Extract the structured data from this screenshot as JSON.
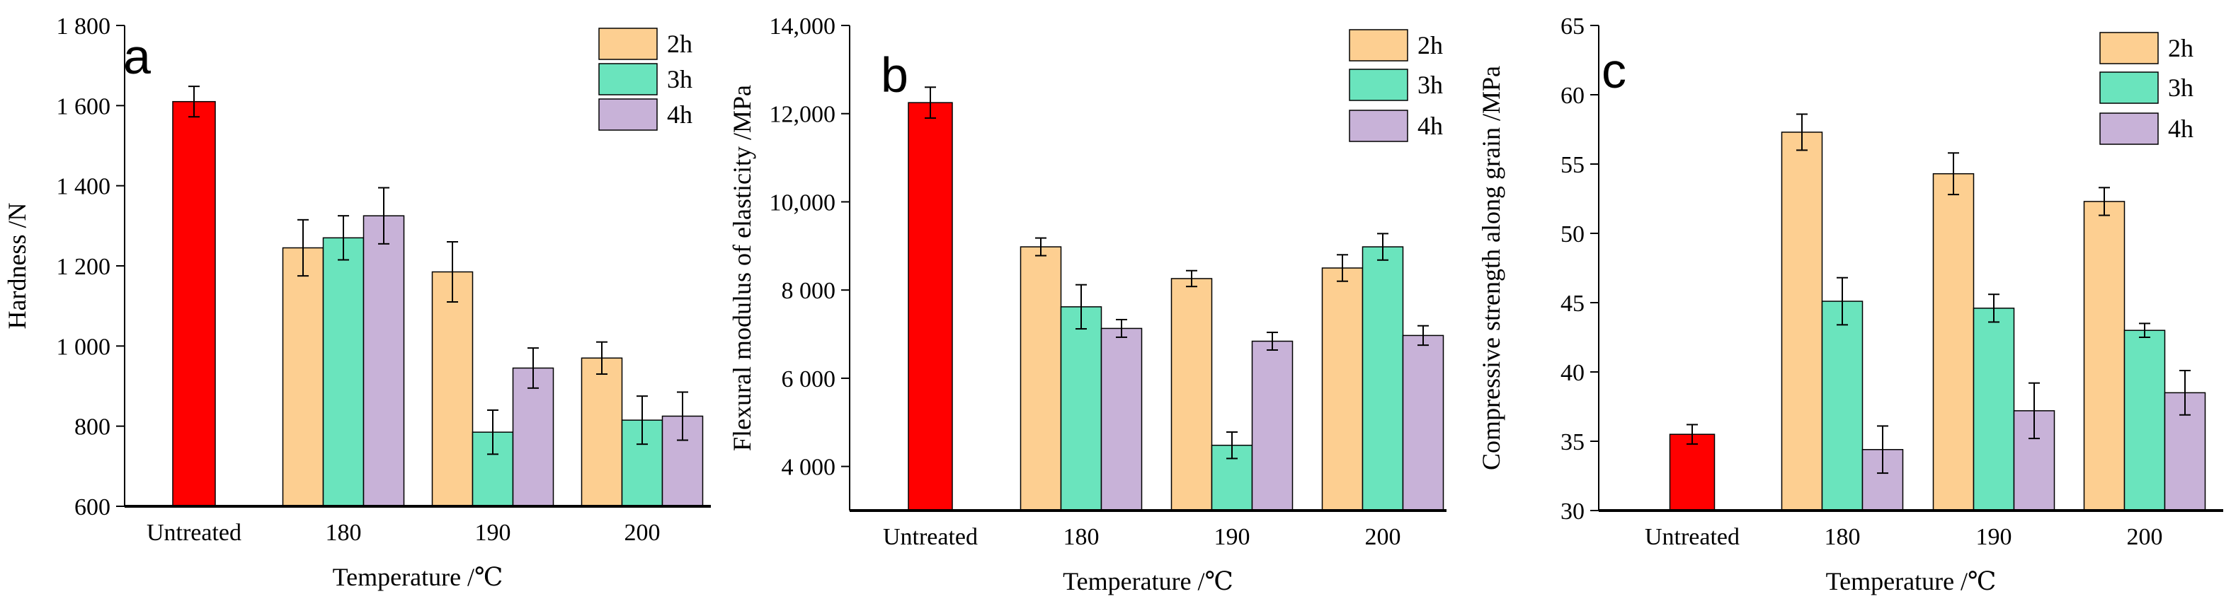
{
  "chart_data": [
    {
      "type": "bar",
      "panel_label": "a",
      "categories": [
        "Untreated",
        "180",
        "190",
        "200"
      ],
      "series": [
        {
          "name": "Untreated",
          "color": "#ff0000",
          "values": [
            1610,
            null,
            null,
            null
          ],
          "errors": [
            38,
            null,
            null,
            null
          ]
        },
        {
          "name": "2h",
          "color": "#fdcf91",
          "values": [
            null,
            1245,
            1185,
            970
          ],
          "errors": [
            null,
            70,
            75,
            40
          ]
        },
        {
          "name": "3h",
          "color": "#6ae4bd",
          "values": [
            null,
            1270,
            785,
            815
          ],
          "errors": [
            null,
            55,
            55,
            60
          ]
        },
        {
          "name": "4h",
          "color": "#c8b2d8",
          "values": [
            null,
            1325,
            945,
            825
          ],
          "errors": [
            null,
            70,
            50,
            60
          ]
        }
      ],
      "legend": [
        "2h",
        "3h",
        "4h"
      ],
      "ylim": [
        600,
        1800
      ],
      "yticks": [
        600,
        800,
        1000,
        1200,
        1400,
        1600,
        1800
      ],
      "ytick_labels": [
        "600",
        "800",
        "1 000",
        "1 200",
        "1 400",
        "1 600",
        "1 800"
      ],
      "xlabel": "Temperature /℃",
      "ylabel": "Hardness /N"
    },
    {
      "type": "bar",
      "panel_label": "b",
      "categories": [
        "Untreated",
        "180",
        "190",
        "200"
      ],
      "series": [
        {
          "name": "Untreated",
          "color": "#ff0000",
          "values": [
            12250,
            null,
            null,
            null
          ],
          "errors": [
            350,
            null,
            null,
            null
          ]
        },
        {
          "name": "2h",
          "color": "#fdcf91",
          "values": [
            null,
            8980,
            8260,
            8500
          ],
          "errors": [
            null,
            200,
            180,
            300
          ]
        },
        {
          "name": "3h",
          "color": "#6ae4bd",
          "values": [
            null,
            7620,
            4480,
            8980
          ],
          "errors": [
            null,
            500,
            300,
            300
          ]
        },
        {
          "name": "4h",
          "color": "#c8b2d8",
          "values": [
            null,
            7130,
            6840,
            6970
          ],
          "errors": [
            null,
            200,
            200,
            220
          ]
        }
      ],
      "legend": [
        "2h",
        "3h",
        "4h"
      ],
      "ylim": [
        3000,
        14000
      ],
      "yticks": [
        4000,
        6000,
        8000,
        10000,
        12000,
        14000
      ],
      "ytick_labels": [
        "4 000",
        "6 000",
        "8 000",
        "10,000",
        "12,000",
        "14,000"
      ],
      "xlabel": "Temperature /℃",
      "ylabel": "Flexural modulus of elasticity /MPa"
    },
    {
      "type": "bar",
      "panel_label": "c",
      "categories": [
        "Untreated",
        "180",
        "190",
        "200"
      ],
      "series": [
        {
          "name": "Untreated",
          "color": "#ff0000",
          "values": [
            35.5,
            null,
            null,
            null
          ],
          "errors": [
            0.7,
            null,
            null,
            null
          ]
        },
        {
          "name": "2h",
          "color": "#fdcf91",
          "values": [
            null,
            57.3,
            54.3,
            52.3
          ],
          "errors": [
            null,
            1.3,
            1.5,
            1.0
          ]
        },
        {
          "name": "3h",
          "color": "#6ae4bd",
          "values": [
            null,
            45.1,
            44.6,
            43.0
          ],
          "errors": [
            null,
            1.7,
            1.0,
            0.5
          ]
        },
        {
          "name": "4h",
          "color": "#c8b2d8",
          "values": [
            null,
            34.4,
            37.2,
            38.5
          ],
          "errors": [
            null,
            1.7,
            2.0,
            1.6
          ]
        }
      ],
      "legend": [
        "2h",
        "3h",
        "4h"
      ],
      "ylim": [
        30,
        65
      ],
      "yticks": [
        30,
        35,
        40,
        45,
        50,
        55,
        60,
        65
      ],
      "ytick_labels": [
        "30",
        "35",
        "40",
        "45",
        "50",
        "55",
        "60",
        "65"
      ],
      "xlabel": "Temperature /℃",
      "ylabel": "Compressive strength along grain /MPa"
    }
  ]
}
